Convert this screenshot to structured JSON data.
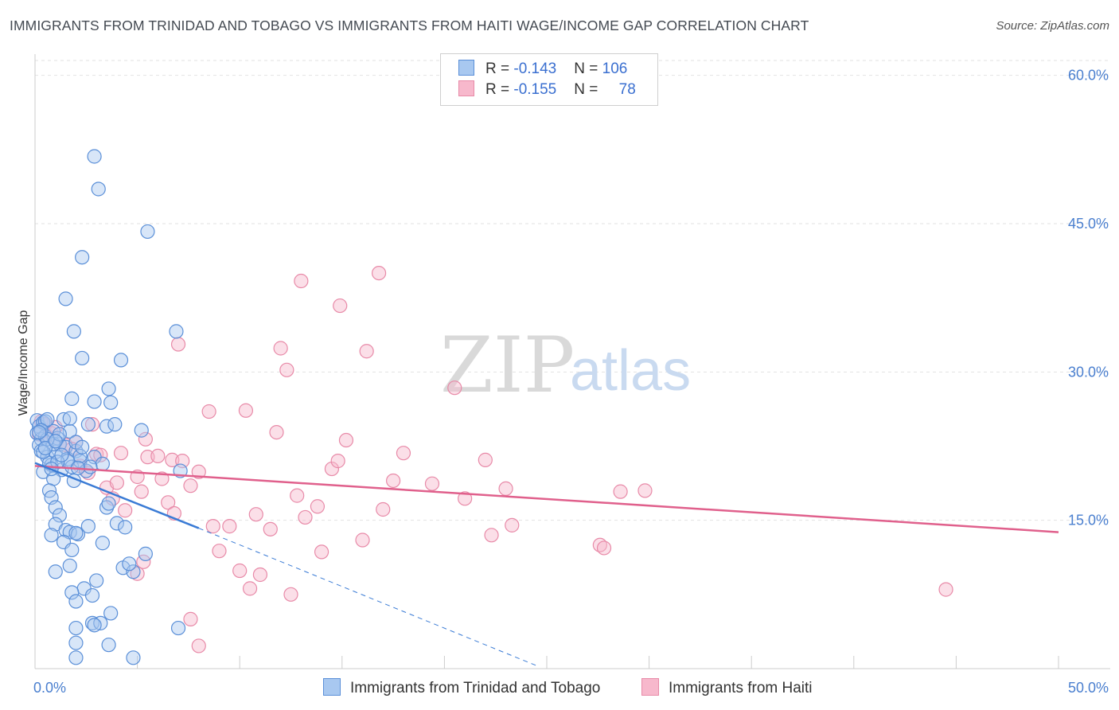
{
  "title": "IMMIGRANTS FROM TRINIDAD AND TOBAGO VS IMMIGRANTS FROM HAITI WAGE/INCOME GAP CORRELATION CHART",
  "source": "Source: ZipAtlas.com",
  "watermark": {
    "zip": "ZIP",
    "atlas": "atlas"
  },
  "legend": {
    "rows": [
      {
        "r_label": "R = ",
        "r_value": "-0.143",
        "n_label": "N = ",
        "n_value": "106"
      },
      {
        "r_label": "R = ",
        "r_value": "-0.155",
        "n_label": "N = ",
        "n_value": "78"
      }
    ]
  },
  "colors": {
    "blue_fill": "#a8c8f0",
    "blue_stroke": "#5a8fd8",
    "blue_line": "#3a7bd5",
    "pink_fill": "#f7b8cc",
    "pink_stroke": "#e88aa8",
    "pink_line": "#e0608c",
    "grid": "#e2e2e2",
    "axis_text": "#4a7fcf"
  },
  "chart_data": {
    "type": "scatter",
    "title": "IMMIGRANTS FROM TRINIDAD AND TOBAGO VS IMMIGRANTS FROM HAITI WAGE/INCOME GAP CORRELATION CHART",
    "xlabel": "",
    "ylabel": "Wage/Income Gap",
    "xlim": [
      0,
      50
    ],
    "ylim": [
      0,
      61.5
    ],
    "x_tick_labels": [
      "0.0%",
      "50.0%"
    ],
    "y_ticks": [
      15,
      30,
      45,
      60
    ],
    "y_tick_labels": [
      "15.0%",
      "30.0%",
      "45.0%",
      "60.0%"
    ],
    "grid": true,
    "legend_position": "bottom",
    "series": [
      {
        "name": "Immigrants from Trinidad and Tobago",
        "color": "blue",
        "trend": {
          "x": [
            0,
            8
          ],
          "y": [
            20.8,
            14.2
          ],
          "dashed_x": [
            8,
            24.5
          ],
          "dashed_y": [
            14.2,
            0.3
          ]
        },
        "points": [
          [
            0.1,
            25.1
          ],
          [
            0.2,
            24.5
          ],
          [
            0.1,
            23.8
          ],
          [
            0.3,
            23.2
          ],
          [
            0.2,
            22.6
          ],
          [
            0.4,
            24.9
          ],
          [
            0.5,
            23.5
          ],
          [
            0.3,
            22.0
          ],
          [
            0.6,
            21.4
          ],
          [
            0.8,
            20.6
          ],
          [
            0.4,
            19.9
          ],
          [
            0.7,
            20.8
          ],
          [
            1.0,
            21.9
          ],
          [
            1.2,
            22.7
          ],
          [
            0.9,
            24.0
          ],
          [
            1.1,
            23.3
          ],
          [
            1.5,
            22.4
          ],
          [
            1.3,
            20.1
          ],
          [
            1.6,
            21.2
          ],
          [
            1.8,
            20.4
          ],
          [
            0.5,
            25.0
          ],
          [
            1.4,
            25.2
          ],
          [
            1.7,
            24.0
          ],
          [
            2.0,
            22.0
          ],
          [
            2.2,
            21.0
          ],
          [
            2.5,
            20.0
          ],
          [
            1.9,
            19.0
          ],
          [
            0.9,
            19.2
          ],
          [
            0.7,
            18.0
          ],
          [
            0.8,
            17.3
          ],
          [
            1.0,
            16.3
          ],
          [
            1.2,
            15.5
          ],
          [
            1.0,
            14.6
          ],
          [
            0.8,
            13.5
          ],
          [
            1.5,
            14.0
          ],
          [
            1.7,
            13.8
          ],
          [
            1.4,
            12.8
          ],
          [
            2.1,
            13.6
          ],
          [
            2.0,
            13.7
          ],
          [
            2.6,
            14.4
          ],
          [
            1.8,
            12.0
          ],
          [
            3.3,
            12.7
          ],
          [
            3.5,
            16.3
          ],
          [
            3.6,
            16.7
          ],
          [
            4.0,
            14.7
          ],
          [
            4.4,
            14.3
          ],
          [
            5.4,
            11.6
          ],
          [
            4.3,
            10.2
          ],
          [
            4.8,
            9.8
          ],
          [
            4.6,
            10.6
          ],
          [
            1.0,
            9.8
          ],
          [
            1.7,
            10.4
          ],
          [
            3.0,
            8.9
          ],
          [
            2.4,
            8.1
          ],
          [
            1.8,
            7.7
          ],
          [
            2.8,
            7.4
          ],
          [
            2.0,
            6.8
          ],
          [
            3.7,
            5.6
          ],
          [
            2.8,
            4.6
          ],
          [
            3.2,
            4.6
          ],
          [
            2.9,
            4.4
          ],
          [
            2.0,
            4.1
          ],
          [
            2.0,
            2.6
          ],
          [
            3.6,
            2.4
          ],
          [
            2.0,
            1.1
          ],
          [
            4.8,
            1.1
          ],
          [
            7.0,
            4.1
          ],
          [
            7.1,
            20.0
          ],
          [
            6.9,
            34.1
          ],
          [
            5.5,
            44.2
          ],
          [
            2.3,
            41.6
          ],
          [
            2.9,
            51.8
          ],
          [
            3.1,
            48.5
          ],
          [
            1.5,
            37.4
          ],
          [
            1.9,
            34.1
          ],
          [
            2.3,
            31.4
          ],
          [
            4.2,
            31.2
          ],
          [
            3.6,
            28.3
          ],
          [
            1.8,
            27.3
          ],
          [
            2.9,
            27.0
          ],
          [
            3.7,
            26.9
          ],
          [
            3.5,
            24.5
          ],
          [
            3.9,
            24.7
          ],
          [
            2.6,
            24.7
          ],
          [
            5.2,
            24.1
          ],
          [
            0.6,
            25.2
          ],
          [
            1.7,
            25.3
          ],
          [
            2.9,
            21.4
          ],
          [
            3.3,
            20.7
          ],
          [
            2.7,
            20.4
          ],
          [
            2.2,
            21.5
          ],
          [
            1.6,
            21.0
          ],
          [
            0.9,
            22.7
          ],
          [
            0.6,
            23.2
          ],
          [
            0.3,
            24.1
          ],
          [
            1.2,
            23.7
          ],
          [
            2.0,
            22.9
          ],
          [
            1.1,
            20.9
          ],
          [
            0.4,
            21.9
          ],
          [
            0.2,
            23.9
          ],
          [
            0.5,
            22.3
          ],
          [
            1.3,
            21.6
          ],
          [
            2.1,
            20.3
          ],
          [
            0.8,
            20.2
          ],
          [
            1.0,
            23.0
          ],
          [
            2.3,
            22.4
          ]
        ]
      },
      {
        "name": "Immigrants from Haiti",
        "color": "pink",
        "trend": {
          "x": [
            0,
            50
          ],
          "y": [
            20.5,
            13.8
          ]
        },
        "points": [
          [
            0.3,
            25.0
          ],
          [
            0.2,
            23.7
          ],
          [
            0.5,
            24.7
          ],
          [
            0.6,
            23.5
          ],
          [
            0.8,
            23.8
          ],
          [
            1.0,
            24.4
          ],
          [
            1.2,
            22.7
          ],
          [
            1.5,
            22.6
          ],
          [
            2.0,
            22.9
          ],
          [
            1.8,
            22.2
          ],
          [
            2.2,
            20.5
          ],
          [
            2.6,
            19.8
          ],
          [
            2.8,
            24.7
          ],
          [
            3.0,
            21.7
          ],
          [
            3.2,
            21.6
          ],
          [
            3.5,
            18.3
          ],
          [
            3.8,
            17.2
          ],
          [
            4.0,
            18.8
          ],
          [
            4.2,
            21.8
          ],
          [
            5.0,
            19.4
          ],
          [
            5.2,
            17.9
          ],
          [
            5.5,
            21.4
          ],
          [
            5.4,
            23.2
          ],
          [
            6.0,
            21.5
          ],
          [
            6.2,
            19.2
          ],
          [
            6.5,
            16.8
          ],
          [
            6.7,
            21.1
          ],
          [
            7.0,
            32.8
          ],
          [
            7.2,
            21.0
          ],
          [
            7.6,
            18.5
          ],
          [
            8.0,
            19.9
          ],
          [
            8.5,
            26.0
          ],
          [
            8.7,
            14.4
          ],
          [
            9.0,
            11.9
          ],
          [
            9.5,
            14.4
          ],
          [
            10.0,
            9.9
          ],
          [
            10.5,
            8.1
          ],
          [
            11.0,
            9.5
          ],
          [
            10.8,
            15.6
          ],
          [
            11.5,
            14.1
          ],
          [
            10.3,
            26.1
          ],
          [
            11.8,
            23.9
          ],
          [
            12.0,
            32.4
          ],
          [
            12.3,
            30.2
          ],
          [
            12.5,
            7.5
          ],
          [
            12.8,
            17.5
          ],
          [
            13.0,
            39.2
          ],
          [
            13.2,
            15.3
          ],
          [
            13.8,
            16.4
          ],
          [
            14.0,
            11.8
          ],
          [
            14.5,
            20.2
          ],
          [
            14.8,
            21.0
          ],
          [
            14.9,
            36.7
          ],
          [
            15.2,
            23.1
          ],
          [
            16.0,
            13.0
          ],
          [
            16.2,
            32.1
          ],
          [
            16.8,
            40.0
          ],
          [
            17.0,
            16.1
          ],
          [
            17.5,
            19.0
          ],
          [
            18.0,
            21.8
          ],
          [
            19.4,
            18.7
          ],
          [
            20.5,
            28.4
          ],
          [
            21.0,
            17.2
          ],
          [
            22.0,
            21.1
          ],
          [
            22.3,
            13.5
          ],
          [
            23.0,
            18.2
          ],
          [
            23.3,
            14.5
          ],
          [
            27.6,
            12.5
          ],
          [
            27.8,
            12.2
          ],
          [
            28.6,
            17.9
          ],
          [
            29.8,
            18.0
          ],
          [
            44.5,
            8.0
          ],
          [
            5.0,
            9.6
          ],
          [
            5.3,
            10.8
          ],
          [
            7.6,
            5.0
          ],
          [
            8.0,
            2.3
          ],
          [
            6.8,
            15.7
          ],
          [
            4.4,
            16.0
          ]
        ]
      }
    ]
  }
}
